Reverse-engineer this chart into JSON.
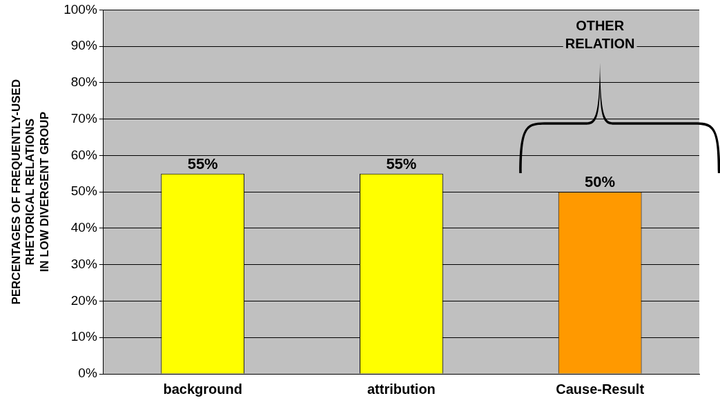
{
  "chart_data": {
    "type": "bar",
    "categories": [
      "background",
      "attribution",
      "Cause-Result"
    ],
    "values": [
      55,
      55,
      50
    ],
    "colors": [
      "#ffff00",
      "#ffff00",
      "#ff9900"
    ],
    "value_labels": [
      "55%",
      "55%",
      "50%"
    ],
    "ylabel": "PERCENTAGES OF FREQUENTLY-USED\nRHETORICAL RELATIONS\nIN LOW DIVERGENT GROUP",
    "ylim": [
      0,
      100
    ],
    "yticks": [
      {
        "value": 0,
        "label": "0%"
      },
      {
        "value": 10,
        "label": "10%"
      },
      {
        "value": 20,
        "label": "20%"
      },
      {
        "value": 30,
        "label": "30%"
      },
      {
        "value": 40,
        "label": "40%"
      },
      {
        "value": 50,
        "label": "50%"
      },
      {
        "value": 60,
        "label": "60%"
      },
      {
        "value": 70,
        "label": "70%"
      },
      {
        "value": 80,
        "label": "80%"
      },
      {
        "value": 90,
        "label": "90%"
      },
      {
        "value": 100,
        "label": "100%"
      }
    ],
    "grid": "y",
    "legend": false,
    "annotations": [
      "OTHER\nRELATION"
    ]
  }
}
